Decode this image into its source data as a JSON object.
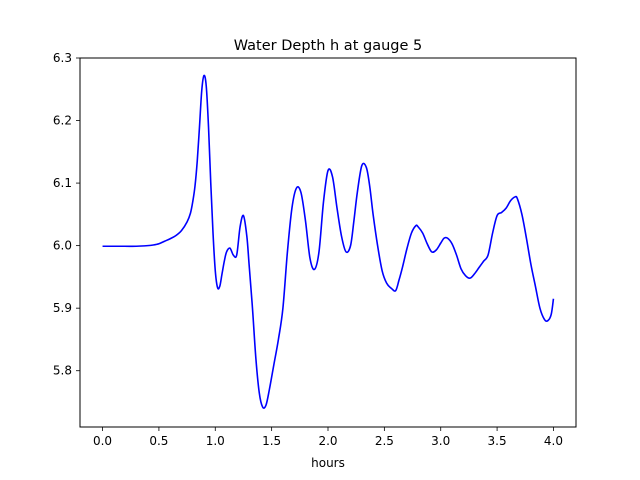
{
  "chart_data": {
    "type": "line",
    "title": "Water Depth h at gauge 5",
    "xlabel": "hours",
    "ylabel": "",
    "xlim": [
      -0.2,
      4.2
    ],
    "ylim": [
      5.71,
      6.3
    ],
    "xticks": [
      "0.0",
      "0.5",
      "1.0",
      "1.5",
      "2.0",
      "2.5",
      "3.0",
      "3.5",
      "4.0"
    ],
    "yticks": [
      "5.8",
      "5.9",
      "6.0",
      "6.1",
      "6.2",
      "6.3"
    ],
    "grid": false,
    "legend": "none",
    "series": [
      {
        "color": "#0000ff",
        "x": [
          0.0,
          0.1,
          0.2,
          0.3,
          0.4,
          0.45,
          0.5,
          0.55,
          0.6,
          0.65,
          0.7,
          0.75,
          0.78,
          0.8,
          0.82,
          0.84,
          0.86,
          0.88,
          0.9,
          0.92,
          0.94,
          0.96,
          0.98,
          1.0,
          1.02,
          1.04,
          1.06,
          1.08,
          1.1,
          1.13,
          1.16,
          1.19,
          1.22,
          1.25,
          1.28,
          1.3,
          1.33,
          1.36,
          1.39,
          1.42,
          1.45,
          1.48,
          1.52,
          1.56,
          1.6,
          1.64,
          1.68,
          1.72,
          1.76,
          1.8,
          1.84,
          1.88,
          1.92,
          1.96,
          2.0,
          2.04,
          2.08,
          2.12,
          2.16,
          2.2,
          2.23,
          2.26,
          2.3,
          2.34,
          2.37,
          2.4,
          2.44,
          2.48,
          2.52,
          2.56,
          2.6,
          2.63,
          2.66,
          2.7,
          2.74,
          2.78,
          2.8,
          2.84,
          2.88,
          2.92,
          2.96,
          3.0,
          3.03,
          3.06,
          3.1,
          3.14,
          3.18,
          3.22,
          3.26,
          3.3,
          3.34,
          3.38,
          3.42,
          3.46,
          3.5,
          3.54,
          3.58,
          3.62,
          3.66,
          3.68,
          3.72,
          3.76,
          3.8,
          3.84,
          3.88,
          3.92,
          3.95,
          3.98,
          4.0
        ],
        "y": [
          5.999,
          5.999,
          5.999,
          5.999,
          6.0,
          6.001,
          6.003,
          6.007,
          6.011,
          6.016,
          6.024,
          6.038,
          6.052,
          6.07,
          6.095,
          6.135,
          6.19,
          6.248,
          6.272,
          6.255,
          6.19,
          6.1,
          6.02,
          5.96,
          5.933,
          5.935,
          5.955,
          5.975,
          5.99,
          5.996,
          5.985,
          5.985,
          6.03,
          6.048,
          6.015,
          5.97,
          5.9,
          5.82,
          5.765,
          5.742,
          5.745,
          5.77,
          5.81,
          5.85,
          5.9,
          5.99,
          6.06,
          6.092,
          6.085,
          6.04,
          5.98,
          5.962,
          5.99,
          6.07,
          6.12,
          6.11,
          6.06,
          6.015,
          5.99,
          6.0,
          6.04,
          6.085,
          6.128,
          6.125,
          6.095,
          6.05,
          6.0,
          5.96,
          5.94,
          5.932,
          5.928,
          5.945,
          5.965,
          5.995,
          6.02,
          6.032,
          6.03,
          6.02,
          6.003,
          5.99,
          5.993,
          6.004,
          6.012,
          6.012,
          6.003,
          5.985,
          5.963,
          5.952,
          5.948,
          5.955,
          5.965,
          5.975,
          5.985,
          6.02,
          6.048,
          6.053,
          6.06,
          6.072,
          6.078,
          6.075,
          6.05,
          6.012,
          5.97,
          5.935,
          5.9,
          5.882,
          5.88,
          5.89,
          5.915
        ]
      }
    ]
  }
}
